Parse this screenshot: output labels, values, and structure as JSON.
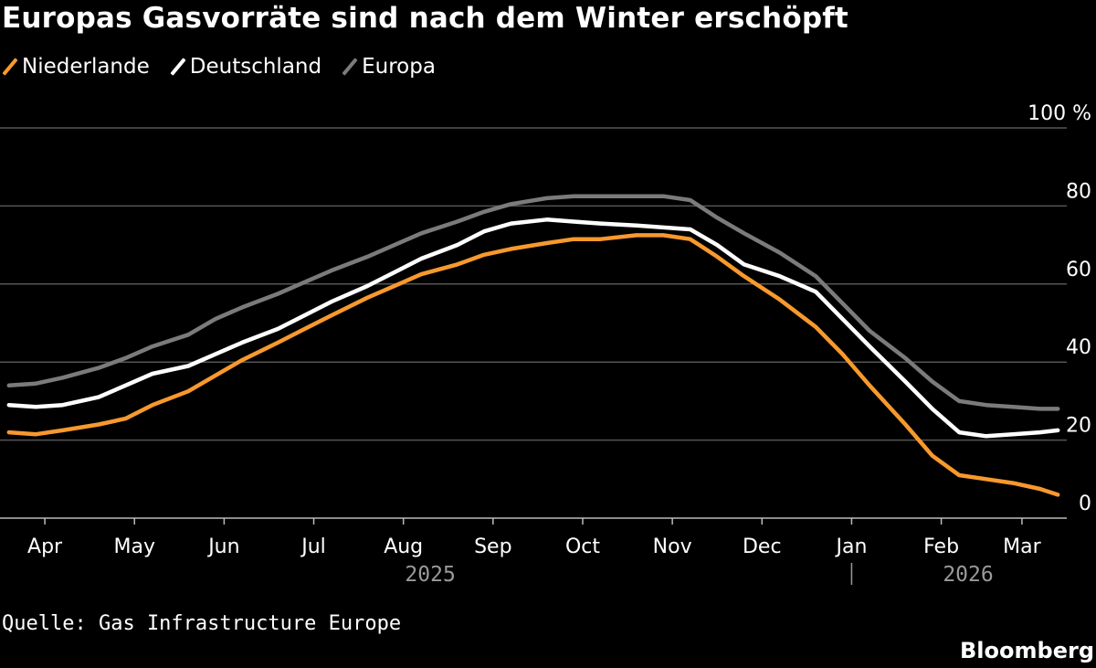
{
  "title": "Europas Gasvorräte sind nach dem Winter erschöpft",
  "source": "Quelle: Gas Infrastructure Europe",
  "brand": "Bloomberg",
  "legend": [
    {
      "label": "Niederlande",
      "color": "#f7992d"
    },
    {
      "label": "Deutschland",
      "color": "#ffffff"
    },
    {
      "label": "Europa",
      "color": "#7b7b7b"
    }
  ],
  "chart_data": {
    "type": "line",
    "title": "Europas Gasvorräte sind nach dem Winter erschöpft",
    "xlabel": "",
    "ylabel": "%",
    "ylim": [
      0,
      100
    ],
    "y_ticks": [
      0,
      20,
      40,
      60,
      80,
      100
    ],
    "y_tick_labels": [
      "0",
      "20",
      "40",
      "60",
      "80",
      "100 %"
    ],
    "x_range": [
      -0.1,
      11.8
    ],
    "month_ticks": [
      {
        "label": "Apr",
        "x": 0.4
      },
      {
        "label": "May",
        "x": 1.4
      },
      {
        "label": "Jun",
        "x": 2.4
      },
      {
        "label": "Jul",
        "x": 3.4
      },
      {
        "label": "Aug",
        "x": 4.4
      },
      {
        "label": "Sep",
        "x": 5.4
      },
      {
        "label": "Oct",
        "x": 6.4
      },
      {
        "label": "Nov",
        "x": 7.4
      },
      {
        "label": "Dec",
        "x": 8.4
      },
      {
        "label": "Jan",
        "x": 9.4
      },
      {
        "label": "Feb",
        "x": 10.4
      },
      {
        "label": "Mar",
        "x": 11.3
      }
    ],
    "years": [
      {
        "label": "2025",
        "x": 4.7
      },
      {
        "label": "2026",
        "x": 10.7
      }
    ],
    "year_divider_x": 9.4,
    "x": [
      0,
      0.3,
      0.6,
      1.0,
      1.3,
      1.6,
      2.0,
      2.3,
      2.6,
      3.0,
      3.3,
      3.6,
      4.0,
      4.3,
      4.6,
      5.0,
      5.3,
      5.6,
      6.0,
      6.3,
      6.6,
      7.0,
      7.3,
      7.6,
      7.9,
      8.2,
      8.6,
      9.0,
      9.3,
      9.6,
      10.0,
      10.3,
      10.6,
      10.9,
      11.2,
      11.5,
      11.7
    ],
    "series": [
      {
        "name": "Europa",
        "color": "#7b7b7b",
        "values": [
          34,
          34.5,
          36,
          38.5,
          41,
          44,
          47,
          51,
          54,
          57.5,
          60.5,
          63.5,
          67,
          70,
          73,
          76,
          78.5,
          80.5,
          82,
          82.5,
          82.5,
          82.5,
          82.5,
          81.5,
          77,
          73,
          68,
          62,
          55,
          48,
          41,
          35,
          30,
          29,
          28.5,
          28,
          28
        ]
      },
      {
        "name": "Deutschland",
        "color": "#ffffff",
        "values": [
          29,
          28.5,
          29,
          31,
          34,
          37,
          39,
          42,
          45,
          48.5,
          52,
          55.5,
          59.5,
          63,
          66.5,
          70,
          73.5,
          75.5,
          76.5,
          76,
          75.5,
          75,
          74.5,
          74,
          70,
          65,
          62,
          58,
          51,
          44,
          35,
          28,
          22,
          21,
          21.5,
          22,
          22.5
        ]
      },
      {
        "name": "Niederlande",
        "color": "#f7992d",
        "values": [
          22,
          21.5,
          22.5,
          24,
          25.5,
          29,
          32.5,
          36.5,
          40.5,
          45,
          48.5,
          52,
          56.5,
          59.5,
          62.5,
          65,
          67.5,
          69,
          70.5,
          71.5,
          71.5,
          72.5,
          72.5,
          71.5,
          67,
          62,
          56,
          49,
          42,
          34,
          24,
          16,
          11,
          10,
          9,
          7.5,
          6
        ]
      }
    ]
  }
}
